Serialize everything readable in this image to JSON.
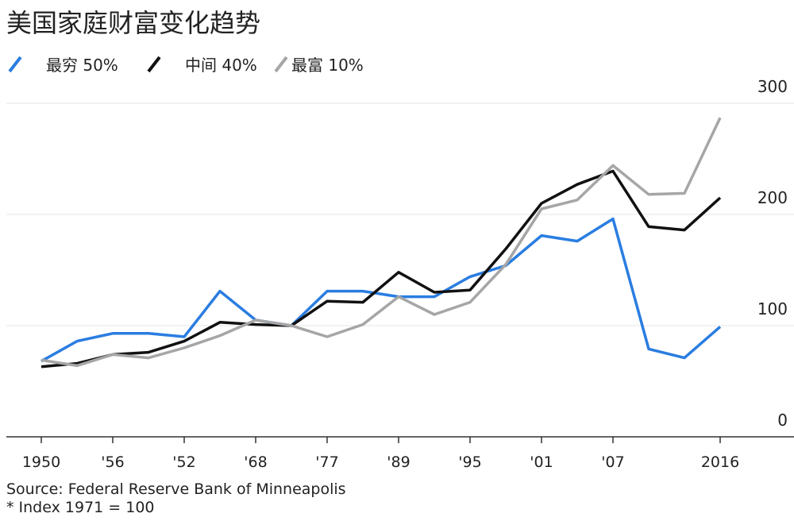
{
  "chart_data": {
    "type": "line",
    "title": "美国家庭财富变化趋势",
    "source": "Source: Federal Reserve Bank of Minneapolis",
    "note": "* Index 1971 = 100",
    "categories": [
      "1950",
      null,
      "'56",
      null,
      "'52",
      null,
      "'68",
      null,
      "'77",
      null,
      "'89",
      null,
      "'95",
      null,
      "'01",
      null,
      "'07",
      null,
      null,
      "2016"
    ],
    "series": [
      {
        "name": "最穷 50%",
        "color": "#2a7de1",
        "values": [
          68,
          86,
          93,
          93,
          90,
          131,
          105,
          100,
          131,
          131,
          126,
          126,
          144,
          154,
          181,
          176,
          196,
          79,
          71,
          99
        ]
      },
      {
        "name": "中间 40%",
        "color": "#111111",
        "values": [
          63,
          66,
          74,
          76,
          86,
          103,
          101,
          100,
          122,
          121,
          148,
          130,
          132,
          169,
          210,
          227,
          239,
          189,
          186,
          215
        ]
      },
      {
        "name": "最富 10%",
        "color": "#a6a6a6",
        "values": [
          69,
          64,
          74,
          71,
          80,
          91,
          105,
          100,
          90,
          101,
          126,
          110,
          121,
          155,
          205,
          213,
          244,
          218,
          219,
          287
        ]
      }
    ],
    "ylim": [
      0,
      300
    ],
    "yticks": [
      0,
      100,
      200,
      300
    ],
    "grid": true,
    "legend": "top-left"
  }
}
